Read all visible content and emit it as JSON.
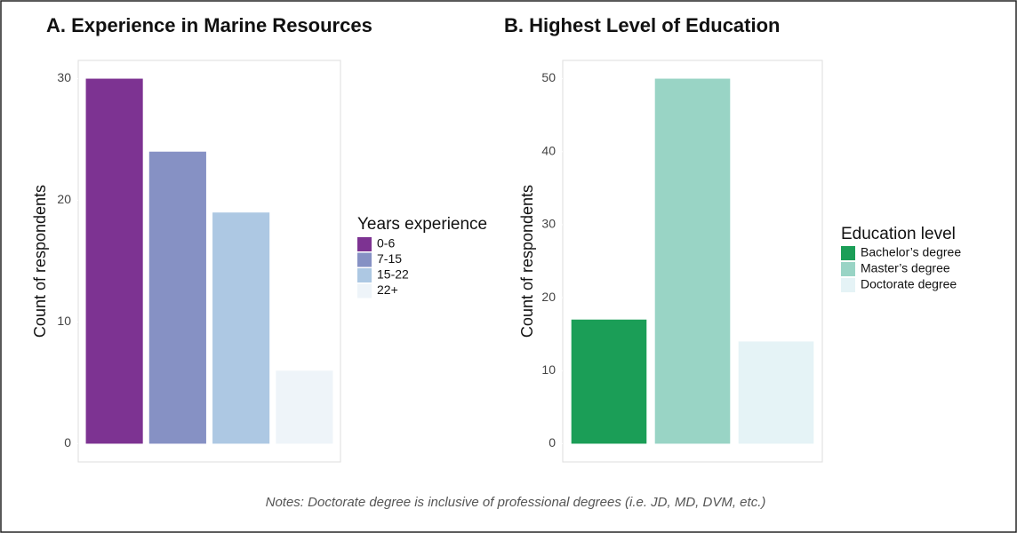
{
  "chart_data": [
    {
      "type": "bar",
      "title": "A. Experience in Marine Resources",
      "ylabel": "Count of respondents",
      "legend_title": "Years experience",
      "categories": [
        "0-6",
        "7-15",
        "15-22",
        "22+"
      ],
      "values": [
        30,
        24,
        19,
        6
      ],
      "colors": [
        "#7d3392",
        "#8691c4",
        "#adc8e3",
        "#eef4f9"
      ],
      "ylim": [
        -1.5,
        31.5
      ],
      "yticks": [
        0,
        10,
        20,
        30
      ]
    },
    {
      "type": "bar",
      "title": "B. Highest Level of Education",
      "ylabel": "Count of respondents",
      "legend_title": "Education level",
      "categories": [
        "Bachelor’s degree",
        "Master’s degree",
        "Doctorate degree"
      ],
      "values": [
        17,
        50,
        14
      ],
      "colors": [
        "#1b9e57",
        "#99d4c5",
        "#e5f3f6"
      ],
      "ylim": [
        -2.5,
        52.5
      ],
      "yticks": [
        0,
        10,
        20,
        30,
        40,
        50
      ]
    }
  ],
  "notes": "Notes: Doctorate degree is inclusive of professional degrees (i.e. JD, MD, DVM, etc.)"
}
